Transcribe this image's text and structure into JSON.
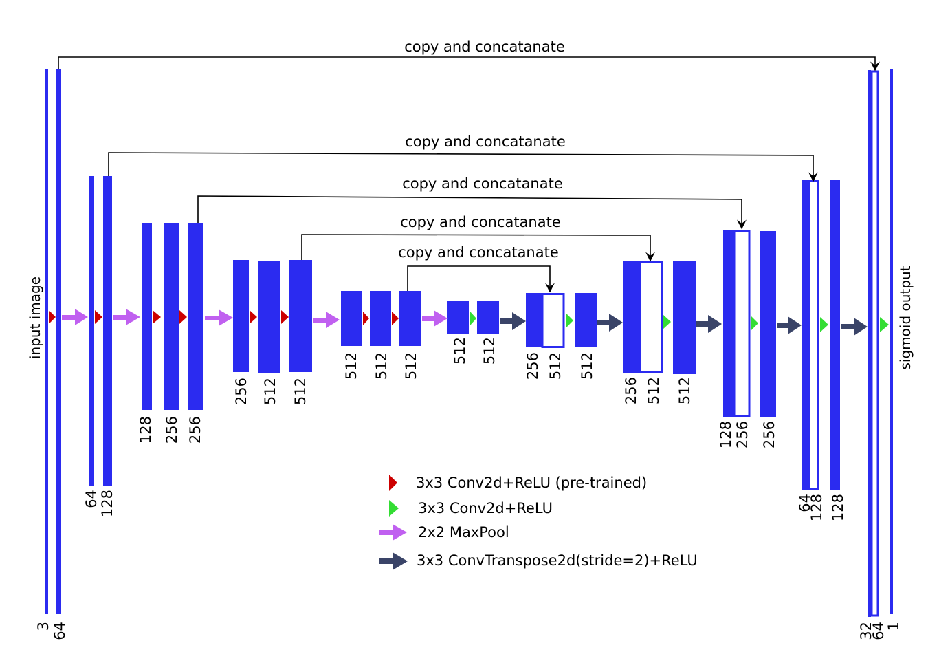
{
  "colors": {
    "feature_map": "#2b2bf0",
    "conv_pretrained": "#cc0000",
    "conv": "#33dd33",
    "maxpool": "#c060f0",
    "convtranspose": "#3a4468",
    "skip_line": "#000000"
  },
  "side_labels": {
    "input": "input image",
    "output": "sigmoid output"
  },
  "skip_label": "copy and concatanate",
  "channels": {
    "b1": [
      "3",
      "64"
    ],
    "b2": [
      "64",
      "128"
    ],
    "b3": [
      "128",
      "256",
      "256"
    ],
    "b4": [
      "256",
      "512",
      "512"
    ],
    "b5": [
      "512",
      "512",
      "512"
    ],
    "b6": [
      "512",
      "512"
    ],
    "d1": [
      "256",
      "512",
      "512"
    ],
    "d2": [
      "256",
      "512",
      "512"
    ],
    "d3": [
      "128",
      "256",
      "256"
    ],
    "d4": [
      "64",
      "128",
      "128"
    ],
    "d5": [
      "32",
      "64",
      "1"
    ]
  },
  "legend": [
    {
      "symbol": "red-triangle",
      "label": "3x3 Conv2d+ReLU (pre-trained)"
    },
    {
      "symbol": "green-triangle",
      "label": "3x3 Conv2d+ReLU"
    },
    {
      "symbol": "purple-arrow",
      "label": "2x2 MaxPool"
    },
    {
      "symbol": "navy-arrow",
      "label": "3x3 ConvTranspose2d(stride=2)+ReLU"
    }
  ]
}
